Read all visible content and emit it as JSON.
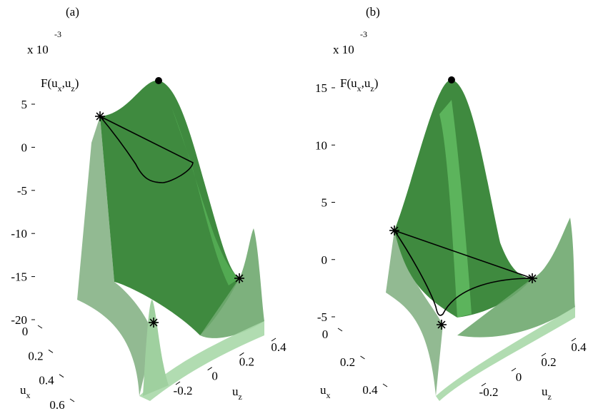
{
  "chart_data": [
    {
      "type": "surface",
      "title": "(a)",
      "scale_label": "x 10",
      "scale_exponent": "-3",
      "zlabel": [
        "F(u",
        "x",
        ",u",
        "z",
        ")"
      ],
      "xlabel": [
        "u",
        "x"
      ],
      "ylabel": [
        "u",
        "z"
      ],
      "color": "#2f7a2f",
      "zlim": [
        -20,
        5
      ],
      "zticks": [
        5,
        0,
        -5,
        -10,
        -15,
        -20
      ],
      "xlim": [
        0,
        0.6
      ],
      "xticks": [
        0,
        0.2,
        0.4,
        0.6
      ],
      "ylim": [
        -0.2,
        0.4
      ],
      "yticks": [
        -0.2,
        0,
        0.2,
        0.4
      ]
    },
    {
      "type": "surface",
      "title": "(b)",
      "scale_label": "x 10",
      "scale_exponent": "-3",
      "zlabel": [
        "F(u",
        "x",
        ",u",
        "z",
        ")"
      ],
      "xlabel": [
        "u",
        "x"
      ],
      "ylabel": [
        "u",
        "z"
      ],
      "color": "#2f7a2f",
      "zlim": [
        -5,
        15
      ],
      "zticks": [
        15,
        10,
        5,
        0,
        -5
      ],
      "xlim": [
        0,
        0.4
      ],
      "xticks": [
        0,
        0.2,
        0.4
      ],
      "ylim": [
        -0.2,
        0.4
      ],
      "yticks": [
        -0.2,
        0,
        0.2,
        0.4
      ]
    }
  ]
}
